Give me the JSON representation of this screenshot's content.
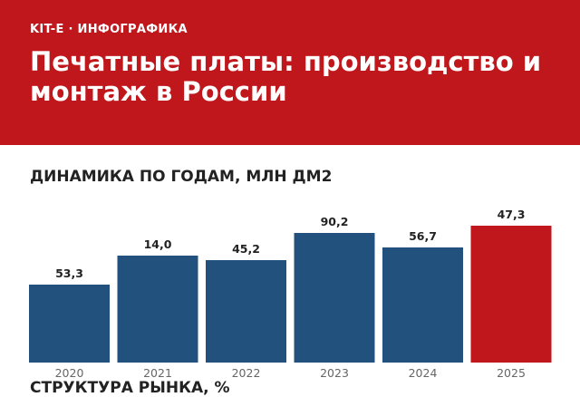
{
  "header": {
    "kicker": "KIT-E · ИНФОГРАФИКА",
    "title": "Печатные платы: производство и монтаж в России"
  },
  "section": {
    "title": "ДИНАМИКА ПО ГОДАМ, МЛН ДМ2",
    "next_title": "СТРУКТУРА РЫНКА, %"
  },
  "colors": {
    "brand": "#bf171c",
    "bar": "#23517d",
    "highlight": "#bf171c"
  },
  "chart_data": {
    "type": "bar",
    "title": "ДИНАМИКА ПО ГОДАМ, МЛН ДМ2",
    "categories": [
      "2020",
      "2021",
      "2022",
      "2023",
      "2024",
      "2025"
    ],
    "values": [
      53.3,
      14.0,
      45.2,
      90.2,
      56.7,
      47.3
    ],
    "labels": [
      "53,3",
      "14,0",
      "45,2",
      "90,2",
      "56,7",
      "47,3"
    ],
    "ylim": [
      0,
      110
    ],
    "highlight_index": 5,
    "grid": false,
    "legend": "none"
  }
}
